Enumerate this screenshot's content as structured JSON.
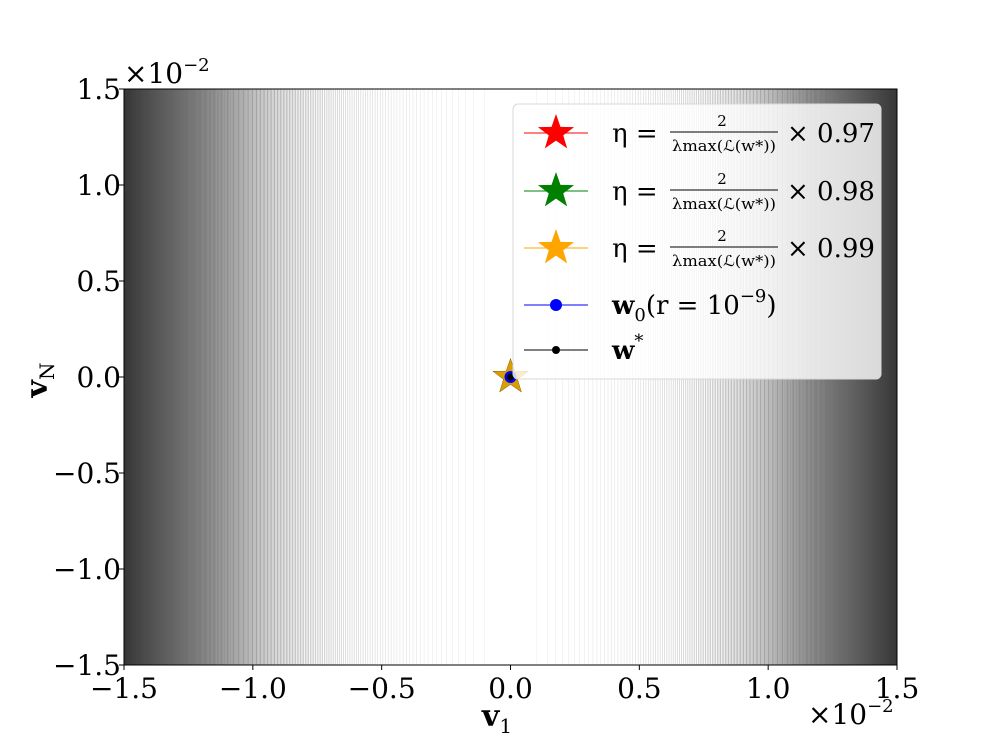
{
  "chart_data": {
    "type": "scatter",
    "background": "contour",
    "x_label_main": "v",
    "x_label_sub": "1",
    "y_label_main": "v",
    "y_label_sub": "N",
    "xlim": [
      -0.015,
      0.015
    ],
    "ylim": [
      -0.015,
      0.015
    ],
    "x_ticks": [
      "−1.5",
      "−1.0",
      "−0.5",
      "0.0",
      "0.5",
      "1.0",
      "1.5"
    ],
    "y_ticks": [
      "−1.5",
      "−1.0",
      "−0.5",
      "0.0",
      "0.5",
      "1.0",
      "1.5"
    ],
    "x_multiplier": "×10",
    "x_multiplier_exp": "−2",
    "y_multiplier": "×10",
    "y_multiplier_exp": "−2",
    "legend_position": "upper-right",
    "series": [
      {
        "name_eta": "η =",
        "name_frac_num": "2",
        "name_frac_den": "λmax(ℒ(w*))",
        "name_factor": "× 0.97",
        "marker": "star",
        "color": "#ff0000",
        "x": [
          0.0
        ],
        "y": [
          0.0
        ]
      },
      {
        "name_eta": "η =",
        "name_frac_num": "2",
        "name_frac_den": "λmax(ℒ(w*))",
        "name_factor": "× 0.98",
        "marker": "star",
        "color": "#008000",
        "x": [
          0.0
        ],
        "y": [
          0.0
        ]
      },
      {
        "name_eta": "η =",
        "name_frac_num": "2",
        "name_frac_den": "λmax(ℒ(w*))",
        "name_factor": "× 0.99",
        "marker": "star",
        "color": "#ffa500",
        "x": [
          0.0
        ],
        "y": [
          0.0
        ]
      },
      {
        "name_text": "w",
        "name_sub": "0",
        "name_rest": "(r = 10",
        "name_sup": "−9",
        "name_close": ")",
        "marker": "dot",
        "color": "#0000ff",
        "x": [
          0.0
        ],
        "y": [
          0.0
        ]
      },
      {
        "name_text": "w",
        "name_sup": "*",
        "marker": "dot",
        "color": "#000000",
        "x": [
          0.0
        ],
        "y": [
          0.0
        ]
      }
    ]
  }
}
